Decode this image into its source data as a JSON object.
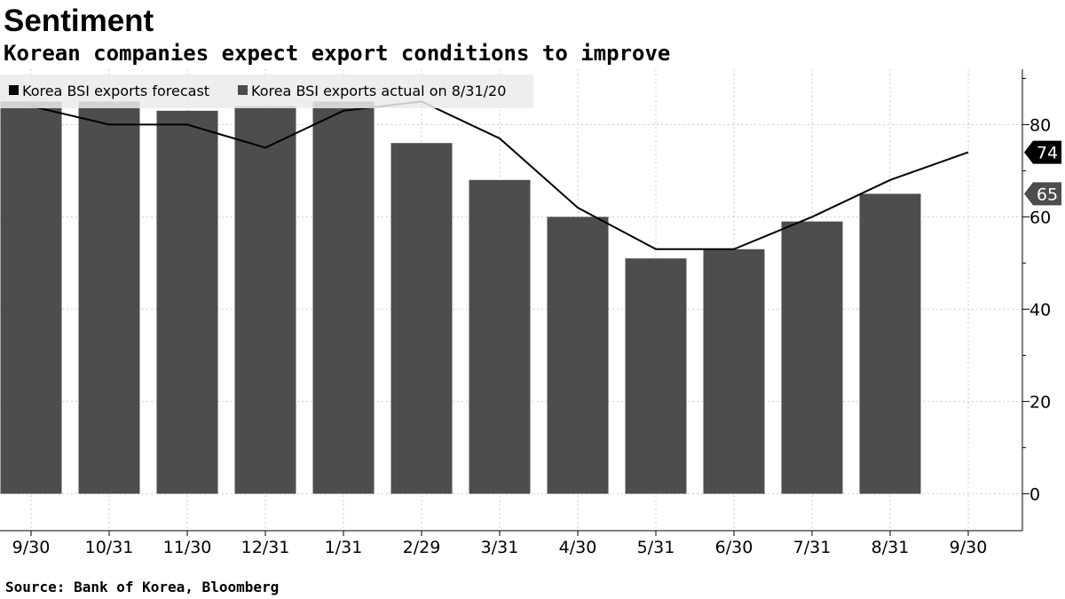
{
  "header": {
    "title": "Sentiment",
    "subtitle": "Korean companies expect export conditions to improve"
  },
  "footer": {
    "source": "Source: Bank of Korea, Bloomberg"
  },
  "colors": {
    "bar": "#4d4d4d",
    "line": "#000000",
    "forecast_label_bg": "#000000",
    "actual_label_bg": "#4d4d4d",
    "grid": "#cccccc"
  },
  "chart_data": {
    "type": "bar",
    "title": "Sentiment",
    "subtitle": "Korean companies expect export conditions to improve",
    "xlabel": "",
    "ylabel": "",
    "ylim": [
      -8,
      92
    ],
    "yticks": [
      0,
      20,
      40,
      60,
      80
    ],
    "y_axis_side": "right",
    "grid": true,
    "legend_position": "top-left",
    "categories": [
      "9/30",
      "10/31",
      "11/30",
      "12/31",
      "1/31",
      "2/29",
      "3/31",
      "4/30",
      "5/31",
      "6/30",
      "7/31",
      "8/31",
      "9/30"
    ],
    "series": [
      {
        "name": "Korea BSI exports actual on 8/31/20",
        "type": "bar",
        "values": [
          85,
          85,
          83,
          84,
          85,
          76,
          68,
          60,
          51,
          53,
          59,
          65,
          null
        ],
        "last_value_label": "65"
      },
      {
        "name": "Korea BSI exports forecast",
        "type": "line",
        "values": [
          84,
          80,
          80,
          75,
          83,
          85,
          77,
          62,
          53,
          53,
          60,
          68,
          74
        ],
        "last_value_label": "74"
      }
    ]
  }
}
